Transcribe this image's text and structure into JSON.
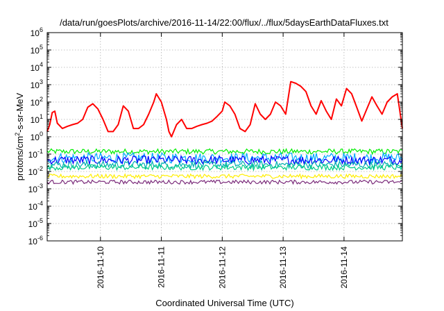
{
  "chart_data": {
    "type": "line",
    "title": "/data/run/goesPlots/archive/2016-11-14/22:00/flux/../flux/5daysEarthDataFluxes.txt",
    "xlabel": "Coordinated Universal Time (UTC)",
    "ylabel": "protons/cm²-s-sr-MeV",
    "ylabel_parts": {
      "base": "protons/cm",
      "sup": "2",
      "rest": "-s-sr-MeV"
    },
    "y_scale": "log",
    "ylim": [
      1e-06,
      1000000.0
    ],
    "y_ticks": [
      {
        "value": 1e-06,
        "base": "10",
        "exp": "-6"
      },
      {
        "value": 1e-05,
        "base": "10",
        "exp": "-5"
      },
      {
        "value": 0.0001,
        "base": "10",
        "exp": "-4"
      },
      {
        "value": 0.001,
        "base": "10",
        "exp": "-3"
      },
      {
        "value": 0.01,
        "base": "10",
        "exp": "-2"
      },
      {
        "value": 0.1,
        "base": "10",
        "exp": "-1"
      },
      {
        "value": 1,
        "base": "10",
        "exp": "0"
      },
      {
        "value": 10,
        "base": "10",
        "exp": "1"
      },
      {
        "value": 100,
        "base": "10",
        "exp": "2"
      },
      {
        "value": 1000,
        "base": "10",
        "exp": "3"
      },
      {
        "value": 10000,
        "base": "10",
        "exp": "4"
      },
      {
        "value": 100000,
        "base": "10",
        "exp": "5"
      },
      {
        "value": 1000000,
        "base": "10",
        "exp": "6"
      }
    ],
    "xlim": [
      "2016-11-09 03:00",
      "2016-11-14 23:00"
    ],
    "x_ticks": [
      "2016-11-10",
      "2016-11-11",
      "2016-11-12",
      "2016-11-13",
      "2016-11-14"
    ],
    "grid": true,
    "series": [
      {
        "color": "#ff0000",
        "points": [
          [
            "2016-11-09 03:00",
            2
          ],
          [
            "2016-11-09 04:00",
            5
          ],
          [
            "2016-11-09 05:00",
            25
          ],
          [
            "2016-11-09 06:00",
            30
          ],
          [
            "2016-11-09 07:00",
            6
          ],
          [
            "2016-11-09 09:00",
            3
          ],
          [
            "2016-11-09 11:00",
            4
          ],
          [
            "2016-11-09 13:00",
            5
          ],
          [
            "2016-11-09 15:00",
            6
          ],
          [
            "2016-11-09 17:00",
            10
          ],
          [
            "2016-11-09 19:00",
            50
          ],
          [
            "2016-11-09 21:00",
            80
          ],
          [
            "2016-11-09 23:00",
            40
          ],
          [
            "2016-11-10 01:00",
            10
          ],
          [
            "2016-11-10 03:00",
            2
          ],
          [
            "2016-11-10 05:00",
            2
          ],
          [
            "2016-11-10 07:00",
            5
          ],
          [
            "2016-11-10 09:00",
            60
          ],
          [
            "2016-11-10 11:00",
            30
          ],
          [
            "2016-11-10 13:00",
            3
          ],
          [
            "2016-11-10 15:00",
            3
          ],
          [
            "2016-11-10 17:00",
            5
          ],
          [
            "2016-11-10 19:00",
            20
          ],
          [
            "2016-11-10 21:00",
            100
          ],
          [
            "2016-11-10 22:00",
            300
          ],
          [
            "2016-11-11 00:00",
            100
          ],
          [
            "2016-11-11 02:00",
            10
          ],
          [
            "2016-11-11 03:00",
            2
          ],
          [
            "2016-11-11 04:00",
            1
          ],
          [
            "2016-11-11 06:00",
            5
          ],
          [
            "2016-11-11 08:00",
            10
          ],
          [
            "2016-11-11 10:00",
            3
          ],
          [
            "2016-11-11 12:00",
            3
          ],
          [
            "2016-11-11 14:00",
            4
          ],
          [
            "2016-11-11 16:00",
            5
          ],
          [
            "2016-11-11 18:00",
            6
          ],
          [
            "2016-11-11 20:00",
            8
          ],
          [
            "2016-11-11 22:00",
            15
          ],
          [
            "2016-11-12 00:00",
            30
          ],
          [
            "2016-11-12 01:00",
            100
          ],
          [
            "2016-11-12 03:00",
            60
          ],
          [
            "2016-11-12 05:00",
            20
          ],
          [
            "2016-11-12 07:00",
            3
          ],
          [
            "2016-11-12 09:00",
            2
          ],
          [
            "2016-11-12 11:00",
            5
          ],
          [
            "2016-11-12 13:00",
            80
          ],
          [
            "2016-11-12 15:00",
            20
          ],
          [
            "2016-11-12 17:00",
            10
          ],
          [
            "2016-11-12 19:00",
            20
          ],
          [
            "2016-11-12 21:00",
            100
          ],
          [
            "2016-11-12 23:00",
            60
          ],
          [
            "2016-11-13 01:00",
            20
          ],
          [
            "2016-11-13 03:00",
            1500
          ],
          [
            "2016-11-13 05:00",
            1200
          ],
          [
            "2016-11-13 07:00",
            800
          ],
          [
            "2016-11-13 09:00",
            400
          ],
          [
            "2016-11-13 11:00",
            60
          ],
          [
            "2016-11-13 13:00",
            20
          ],
          [
            "2016-11-13 15:00",
            120
          ],
          [
            "2016-11-13 17:00",
            30
          ],
          [
            "2016-11-13 19:00",
            10
          ],
          [
            "2016-11-13 21:00",
            150
          ],
          [
            "2016-11-13 23:00",
            60
          ],
          [
            "2016-11-14 01:00",
            600
          ],
          [
            "2016-11-14 03:00",
            300
          ],
          [
            "2016-11-14 05:00",
            50
          ],
          [
            "2016-11-14 07:00",
            8
          ],
          [
            "2016-11-14 09:00",
            40
          ],
          [
            "2016-11-14 11:00",
            200
          ],
          [
            "2016-11-14 13:00",
            60
          ],
          [
            "2016-11-14 15:00",
            20
          ],
          [
            "2016-11-14 17:00",
            100
          ],
          [
            "2016-11-14 19:00",
            200
          ],
          [
            "2016-11-14 21:00",
            300
          ],
          [
            "2016-11-14 23:00",
            3
          ]
        ]
      },
      {
        "color": "#00ee00",
        "band": [
          0.1,
          0.2
        ],
        "x_range": [
          "2016-11-09 03:00",
          "2016-11-14 23:00"
        ]
      },
      {
        "color": "#00aaff",
        "band": [
          0.03,
          0.12
        ],
        "x_range": [
          "2016-11-09 03:00",
          "2016-11-14 23:00"
        ]
      },
      {
        "color": "#0000ff",
        "band": [
          0.025,
          0.08
        ],
        "x_range": [
          "2016-11-09 03:00",
          "2016-11-14 23:00"
        ]
      },
      {
        "color": "#00b0b0",
        "band": [
          0.015,
          0.04
        ],
        "x_range": [
          "2016-11-09 03:00",
          "2016-11-14 23:00"
        ]
      },
      {
        "color": "#00cc88",
        "band": [
          0.012,
          0.025
        ],
        "x_range": [
          "2016-11-09 03:00",
          "2016-11-14 23:00"
        ]
      },
      {
        "color": "#ffee00",
        "band": [
          0.004,
          0.007
        ],
        "x_range": [
          "2016-11-09 03:00",
          "2016-11-14 23:00"
        ]
      },
      {
        "color": "#7a2a7a",
        "band": [
          0.0019,
          0.0032
        ],
        "x_range": [
          "2016-11-09 03:00",
          "2016-11-14 23:00"
        ]
      }
    ]
  }
}
